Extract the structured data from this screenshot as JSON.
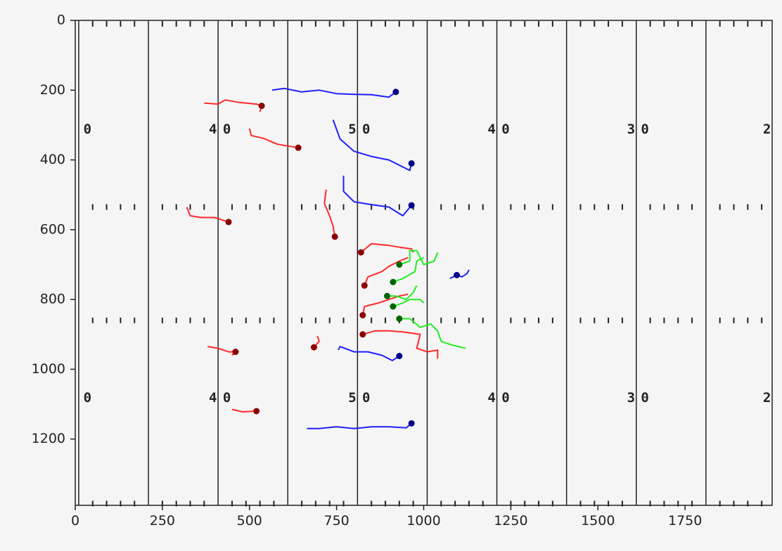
{
  "chart_data": {
    "type": "scatter",
    "title": "",
    "xlabel": "",
    "ylabel": "",
    "xlim": [
      0,
      2000
    ],
    "ylim": [
      1390,
      0
    ],
    "y_inverted": true,
    "grid": false,
    "x_ticks": [
      0,
      250,
      500,
      750,
      1000,
      1250,
      1500,
      1750
    ],
    "y_ticks": [
      0,
      200,
      400,
      600,
      800,
      1000,
      1200
    ],
    "field": {
      "yard_lines_x": [
        10,
        210,
        410,
        610,
        810,
        1010,
        1210,
        1410,
        1610,
        1810
      ],
      "hash_rows_y": [
        10,
        535,
        860,
        1385
      ],
      "hash_xs": [
        50,
        90,
        130,
        170,
        250,
        290,
        330,
        370,
        450,
        490,
        530,
        570,
        650,
        690,
        730,
        770,
        850,
        890,
        930,
        970,
        1050,
        1090,
        1130,
        1170,
        1250,
        1290,
        1330,
        1370,
        1450,
        1490,
        1530,
        1570,
        1650,
        1690,
        1730,
        1770,
        1850,
        1890,
        1930,
        1970
      ],
      "yard_number_rows_y": [
        313,
        1083
      ],
      "yard_numbers": [
        {
          "text": "0",
          "x": 35
        },
        {
          "text": "4",
          "x": 395
        },
        {
          "text": "0",
          "x": 435
        },
        {
          "text": "5",
          "x": 795
        },
        {
          "text": "0",
          "x": 835
        },
        {
          "text": "4",
          "x": 1195
        },
        {
          "text": "0",
          "x": 1235
        },
        {
          "text": "3",
          "x": 1595
        },
        {
          "text": "0",
          "x": 1635
        },
        {
          "text": "2",
          "x": 1985
        }
      ]
    },
    "colors": {
      "red_track": "#ff2a2a",
      "red_point": "#8b0000",
      "blue_track": "#1f1fff",
      "blue_point": "#00008b",
      "green_track": "#22ee22",
      "green_point": "#006400",
      "line": "#222222",
      "background": "#f5f5f5"
    },
    "series": [
      {
        "team": "red",
        "end": [
          535,
          245
        ],
        "path": [
          [
            370,
            237
          ],
          [
            410,
            240
          ],
          [
            430,
            228
          ],
          [
            470,
            235
          ],
          [
            520,
            240
          ],
          [
            535,
            245
          ],
          [
            530,
            262
          ]
        ]
      },
      {
        "team": "red",
        "end": [
          640,
          365
        ],
        "path": [
          [
            500,
            310
          ],
          [
            505,
            330
          ],
          [
            540,
            338
          ],
          [
            580,
            355
          ],
          [
            640,
            365
          ]
        ]
      },
      {
        "team": "red",
        "end": [
          440,
          578
        ],
        "path": [
          [
            320,
            535
          ],
          [
            330,
            560
          ],
          [
            360,
            565
          ],
          [
            400,
            565
          ],
          [
            440,
            578
          ]
        ]
      },
      {
        "team": "red",
        "end": [
          745,
          620
        ],
        "path": [
          [
            720,
            485
          ],
          [
            715,
            525
          ],
          [
            730,
            560
          ],
          [
            740,
            590
          ],
          [
            745,
            620
          ]
        ]
      },
      {
        "team": "red",
        "end": [
          820,
          665
        ],
        "path": [
          [
            820,
            665
          ],
          [
            850,
            640
          ],
          [
            900,
            645
          ],
          [
            930,
            650
          ],
          [
            965,
            655
          ],
          [
            970,
            665
          ]
        ]
      },
      {
        "team": "red",
        "end": [
          830,
          760
        ],
        "path": [
          [
            830,
            760
          ],
          [
            840,
            735
          ],
          [
            880,
            720
          ],
          [
            900,
            705
          ],
          [
            930,
            690
          ],
          [
            955,
            680
          ]
        ]
      },
      {
        "team": "red",
        "end": [
          825,
          845
        ],
        "path": [
          [
            825,
            845
          ],
          [
            830,
            820
          ],
          [
            870,
            810
          ],
          [
            900,
            800
          ],
          [
            930,
            790
          ],
          [
            955,
            785
          ]
        ]
      },
      {
        "team": "red",
        "end": [
          825,
          900
        ],
        "path": [
          [
            825,
            900
          ],
          [
            860,
            890
          ],
          [
            900,
            890
          ],
          [
            940,
            893
          ],
          [
            990,
            900
          ],
          [
            980,
            940
          ],
          [
            1010,
            950
          ],
          [
            1040,
            945
          ],
          [
            1040,
            970
          ]
        ]
      },
      {
        "team": "red",
        "end": [
          460,
          950
        ],
        "path": [
          [
            380,
            935
          ],
          [
            410,
            940
          ],
          [
            440,
            950
          ],
          [
            460,
            950
          ],
          [
            450,
            960
          ]
        ]
      },
      {
        "team": "red",
        "end": [
          685,
          937
        ],
        "path": [
          [
            685,
            937
          ],
          [
            700,
            920
          ],
          [
            695,
            905
          ]
        ]
      },
      {
        "team": "red",
        "end": [
          520,
          1120
        ],
        "path": [
          [
            450,
            1115
          ],
          [
            480,
            1122
          ],
          [
            520,
            1120
          ]
        ]
      },
      {
        "team": "blue",
        "end": [
          920,
          205
        ],
        "path": [
          [
            565,
            200
          ],
          [
            600,
            195
          ],
          [
            650,
            205
          ],
          [
            700,
            200
          ],
          [
            750,
            210
          ],
          [
            800,
            212
          ],
          [
            850,
            213
          ],
          [
            900,
            220
          ],
          [
            920,
            205
          ]
        ]
      },
      {
        "team": "blue",
        "end": [
          965,
          410
        ],
        "path": [
          [
            740,
            285
          ],
          [
            760,
            340
          ],
          [
            800,
            375
          ],
          [
            850,
            390
          ],
          [
            900,
            400
          ],
          [
            960,
            430
          ],
          [
            965,
            410
          ]
        ]
      },
      {
        "team": "blue",
        "end": [
          965,
          530
        ],
        "path": [
          [
            770,
            445
          ],
          [
            770,
            490
          ],
          [
            800,
            520
          ],
          [
            850,
            528
          ],
          [
            900,
            535
          ],
          [
            940,
            560
          ],
          [
            965,
            530
          ]
        ]
      },
      {
        "team": "blue",
        "end": [
          1095,
          730
        ],
        "path": [
          [
            1075,
            740
          ],
          [
            1095,
            730
          ],
          [
            1110,
            735
          ],
          [
            1125,
            725
          ],
          [
            1130,
            715
          ]
        ]
      },
      {
        "team": "blue",
        "end": [
          930,
          962
        ],
        "path": [
          [
            755,
            945
          ],
          [
            760,
            935
          ],
          [
            800,
            950
          ],
          [
            840,
            950
          ],
          [
            880,
            960
          ],
          [
            910,
            975
          ],
          [
            930,
            962
          ]
        ]
      },
      {
        "team": "blue",
        "end": [
          965,
          1155
        ],
        "path": [
          [
            665,
            1170
          ],
          [
            700,
            1170
          ],
          [
            750,
            1165
          ],
          [
            800,
            1170
          ],
          [
            850,
            1165
          ],
          [
            900,
            1165
          ],
          [
            950,
            1168
          ],
          [
            965,
            1155
          ]
        ]
      },
      {
        "team": "green",
        "end": [
          930,
          700
        ],
        "path": [
          [
            930,
            700
          ],
          [
            960,
            690
          ],
          [
            960,
            660
          ],
          [
            980,
            660
          ],
          [
            1000,
            700
          ],
          [
            1030,
            690
          ],
          [
            1040,
            665
          ]
        ]
      },
      {
        "team": "green",
        "end": [
          912,
          750
        ],
        "path": [
          [
            912,
            750
          ],
          [
            940,
            740
          ],
          [
            975,
            720
          ],
          [
            980,
            690
          ],
          [
            1000,
            680
          ]
        ]
      },
      {
        "team": "green",
        "end": [
          895,
          790
        ],
        "path": [
          [
            895,
            790
          ],
          [
            920,
            790
          ],
          [
            950,
            800
          ],
          [
            970,
            780
          ],
          [
            980,
            760
          ]
        ]
      },
      {
        "team": "green",
        "end": [
          912,
          820
        ],
        "path": [
          [
            912,
            820
          ],
          [
            940,
            810
          ],
          [
            960,
            800
          ],
          [
            990,
            800
          ],
          [
            1000,
            810
          ]
        ]
      },
      {
        "team": "green",
        "end": [
          930,
          855
        ],
        "path": [
          [
            930,
            855
          ],
          [
            960,
            855
          ],
          [
            990,
            880
          ],
          [
            1020,
            870
          ],
          [
            1040,
            890
          ],
          [
            1050,
            920
          ],
          [
            1080,
            930
          ],
          [
            1120,
            940
          ]
        ]
      }
    ]
  }
}
